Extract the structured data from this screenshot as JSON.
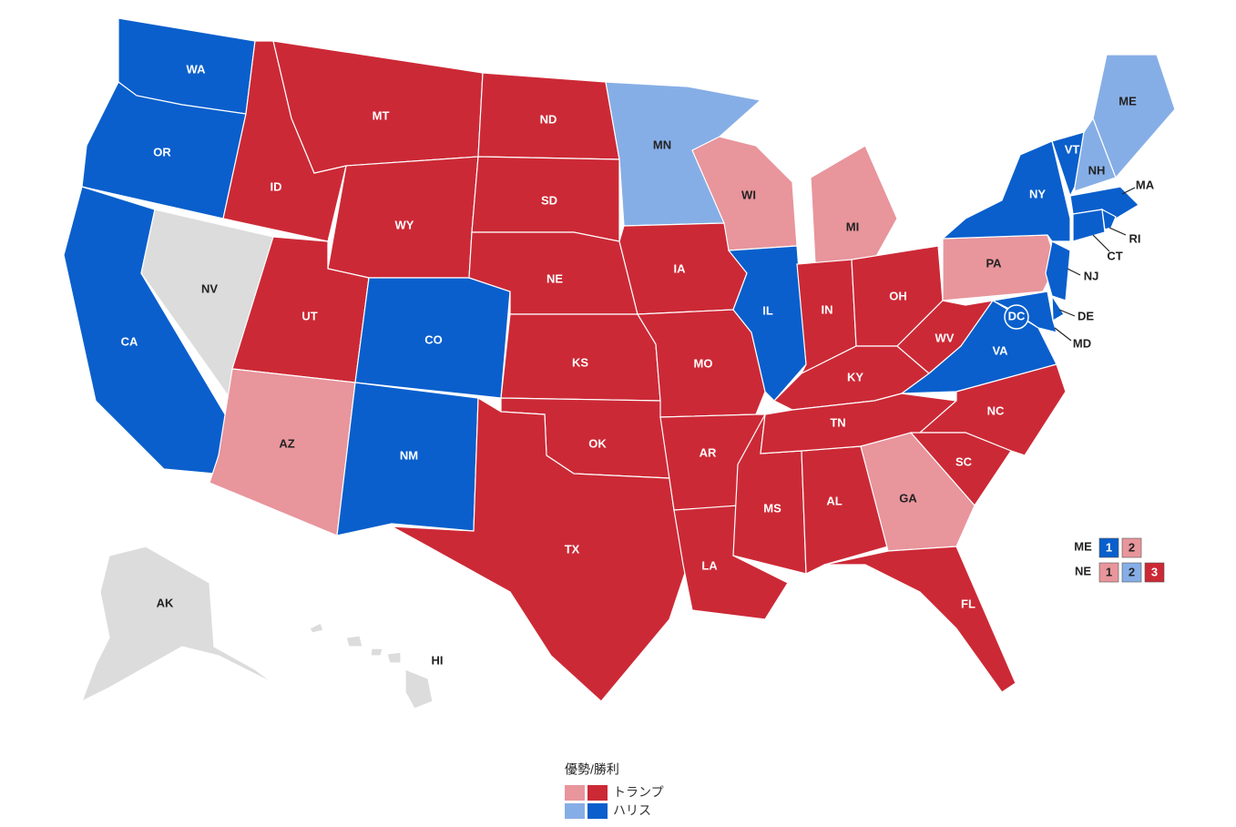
{
  "map": {
    "colors": {
      "trump": "#cc2936",
      "trump_lean": "#e8959c",
      "harris": "#0a5fcc",
      "harris_lean": "#86aee6",
      "undecided": "#dcdcdc"
    },
    "states": [
      {
        "label": "WA",
        "status": "harris"
      },
      {
        "label": "OR",
        "status": "harris"
      },
      {
        "label": "CA",
        "status": "harris"
      },
      {
        "label": "NV",
        "status": "undecided"
      },
      {
        "label": "ID",
        "status": "trump"
      },
      {
        "label": "MT",
        "status": "trump"
      },
      {
        "label": "WY",
        "status": "trump"
      },
      {
        "label": "UT",
        "status": "trump"
      },
      {
        "label": "AZ",
        "status": "trump_lean"
      },
      {
        "label": "CO",
        "status": "harris"
      },
      {
        "label": "NM",
        "status": "harris"
      },
      {
        "label": "ND",
        "status": "trump"
      },
      {
        "label": "SD",
        "status": "trump"
      },
      {
        "label": "NE",
        "status": "trump"
      },
      {
        "label": "KS",
        "status": "trump"
      },
      {
        "label": "OK",
        "status": "trump"
      },
      {
        "label": "TX",
        "status": "trump"
      },
      {
        "label": "MN",
        "status": "harris_lean"
      },
      {
        "label": "IA",
        "status": "trump"
      },
      {
        "label": "MO",
        "status": "trump"
      },
      {
        "label": "AR",
        "status": "trump"
      },
      {
        "label": "LA",
        "status": "trump"
      },
      {
        "label": "MS",
        "status": "trump"
      },
      {
        "label": "AL",
        "status": "trump"
      },
      {
        "label": "WI",
        "status": "trump_lean"
      },
      {
        "label": "IL",
        "status": "harris"
      },
      {
        "label": "MI",
        "status": "trump_lean"
      },
      {
        "label": "IN",
        "status": "trump"
      },
      {
        "label": "OH",
        "status": "trump"
      },
      {
        "label": "KY",
        "status": "trump"
      },
      {
        "label": "TN",
        "status": "trump"
      },
      {
        "label": "WV",
        "status": "trump"
      },
      {
        "label": "VA",
        "status": "harris"
      },
      {
        "label": "NC",
        "status": "trump"
      },
      {
        "label": "SC",
        "status": "trump"
      },
      {
        "label": "GA",
        "status": "trump_lean"
      },
      {
        "label": "FL",
        "status": "trump"
      },
      {
        "label": "PA",
        "status": "trump_lean"
      },
      {
        "label": "NY",
        "status": "harris"
      },
      {
        "label": "VT",
        "status": "harris"
      },
      {
        "label": "NH",
        "status": "harris_lean"
      },
      {
        "label": "ME",
        "status": "harris_lean"
      },
      {
        "label": "MA",
        "status": "harris"
      },
      {
        "label": "CT",
        "status": "harris"
      },
      {
        "label": "RI",
        "status": "harris"
      },
      {
        "label": "NJ",
        "status": "harris"
      },
      {
        "label": "DE",
        "status": "harris"
      },
      {
        "label": "MD",
        "status": "harris"
      },
      {
        "label": "DC",
        "status": "harris"
      },
      {
        "label": "AK",
        "status": "undecided"
      },
      {
        "label": "HI",
        "status": "undecided"
      }
    ],
    "districts": [
      {
        "state": "ME",
        "boxes": [
          {
            "label": "1",
            "status": "harris"
          },
          {
            "label": "2",
            "status": "trump_lean"
          }
        ]
      },
      {
        "state": "NE",
        "boxes": [
          {
            "label": "1",
            "status": "trump_lean"
          },
          {
            "label": "2",
            "status": "harris_lean"
          },
          {
            "label": "3",
            "status": "trump"
          }
        ]
      }
    ],
    "legend": {
      "title": "優勢/勝利",
      "items": [
        {
          "label": "トランプ",
          "lean": "trump_lean",
          "win": "trump"
        },
        {
          "label": "ハリス",
          "lean": "harris_lean",
          "win": "harris"
        }
      ]
    }
  }
}
